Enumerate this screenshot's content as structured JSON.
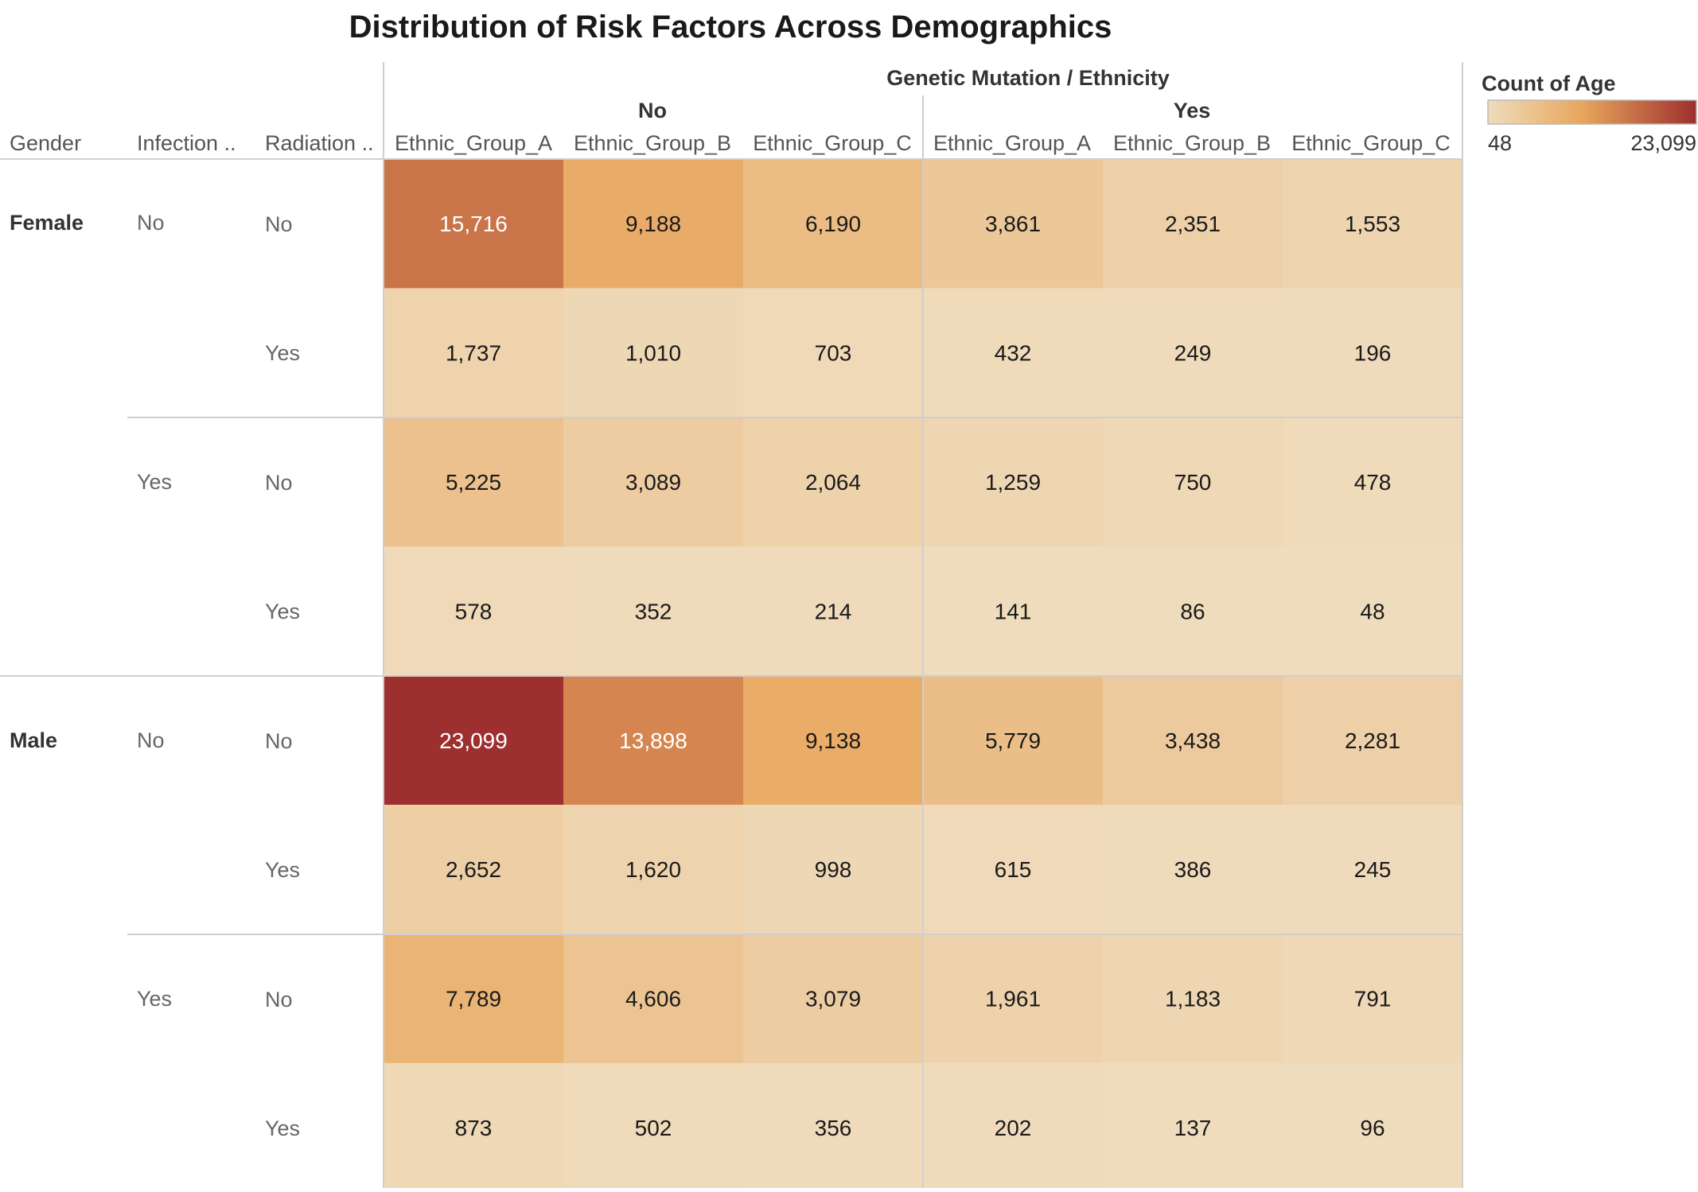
{
  "chart_data": {
    "type": "heatmap",
    "title": "Distribution of Risk Factors Across Demographics",
    "column_header": {
      "title": "Genetic Mutation",
      "separator": "/",
      "subtitle": "Ethnicity"
    },
    "row_headers": [
      "Gender",
      "Infection ..",
      "Radiation .."
    ],
    "column_groups": [
      {
        "label": "No",
        "categories": [
          "Ethnic_Group_A",
          "Ethnic_Group_B",
          "Ethnic_Group_C"
        ]
      },
      {
        "label": "Yes",
        "categories": [
          "Ethnic_Group_A",
          "Ethnic_Group_B",
          "Ethnic_Group_C"
        ]
      }
    ],
    "rows": [
      {
        "gender": "Female",
        "infection": "No",
        "radiation": "No",
        "values": [
          15716,
          9188,
          6190,
          3861,
          2351,
          1553
        ]
      },
      {
        "gender": "",
        "infection": "",
        "radiation": "Yes",
        "values": [
          1737,
          1010,
          703,
          432,
          249,
          196
        ]
      },
      {
        "gender": "",
        "infection": "Yes",
        "radiation": "No",
        "values": [
          5225,
          3089,
          2064,
          1259,
          750,
          478
        ]
      },
      {
        "gender": "",
        "infection": "",
        "radiation": "Yes",
        "values": [
          578,
          352,
          214,
          141,
          86,
          48
        ]
      },
      {
        "gender": "Male",
        "infection": "No",
        "radiation": "No",
        "values": [
          23099,
          13898,
          9138,
          5779,
          3438,
          2281
        ]
      },
      {
        "gender": "",
        "infection": "",
        "radiation": "Yes",
        "values": [
          2652,
          1620,
          998,
          615,
          386,
          245
        ]
      },
      {
        "gender": "",
        "infection": "Yes",
        "radiation": "No",
        "values": [
          7789,
          4606,
          3079,
          1961,
          1183,
          791
        ]
      },
      {
        "gender": "",
        "infection": "",
        "radiation": "Yes",
        "values": [
          873,
          502,
          356,
          202,
          137,
          96
        ]
      }
    ],
    "legend": {
      "title": "Count of Age",
      "min": 48,
      "max": 23099,
      "min_label": "48",
      "max_label": "23,099"
    },
    "colors": {
      "low": "#EFDCBD",
      "mid": "#E8A65C",
      "high": "#9E2F2F"
    }
  }
}
